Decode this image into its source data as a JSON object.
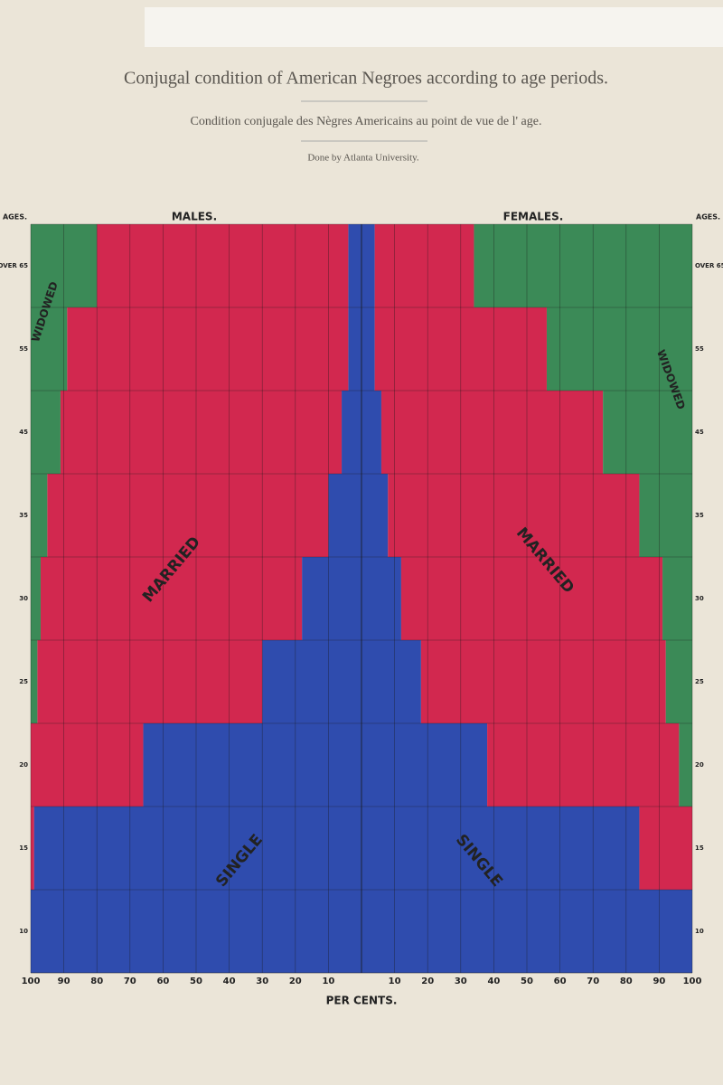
{
  "chart_data": {
    "type": "bar",
    "title": "Conjugal condition of American Negroes according to age periods.",
    "subtitle": "Condition conjugale des Nègres Americains au point de vue de l' age.",
    "note": "Done by Atlanta University.",
    "xlabel": "PER CENTS.",
    "ylabel": "AGES.",
    "categories": [
      "OVER 65",
      "55",
      "45",
      "35",
      "30",
      "25",
      "20",
      "15",
      "10"
    ],
    "xlim": [
      0,
      100
    ],
    "xticks": [
      10,
      20,
      30,
      40,
      50,
      60,
      70,
      80,
      90,
      100
    ],
    "grid": true,
    "panels": [
      {
        "name": "MALES.",
        "side": "left",
        "series": [
          {
            "name": "SINGLE",
            "color": "#2f4cae",
            "values": [
              4,
              4,
              6,
              10,
              18,
              30,
              66,
              99,
              100
            ]
          },
          {
            "name": "MARRIED",
            "color": "#d2284f",
            "values": [
              76,
              85,
              85,
              85,
              79,
              68,
              34,
              1,
              0
            ]
          },
          {
            "name": "WIDOWED",
            "color": "#3b8a57",
            "values": [
              20,
              11,
              9,
              5,
              3,
              2,
              0,
              0,
              0
            ]
          }
        ]
      },
      {
        "name": "FEMALES.",
        "side": "right",
        "series": [
          {
            "name": "SINGLE",
            "color": "#2f4cae",
            "values": [
              4,
              4,
              6,
              8,
              12,
              18,
              38,
              84,
              100
            ]
          },
          {
            "name": "MARRIED",
            "color": "#d2284f",
            "values": [
              30,
              52,
              67,
              76,
              79,
              74,
              58,
              16,
              0
            ]
          },
          {
            "name": "WIDOWED",
            "color": "#3b8a57",
            "values": [
              66,
              44,
              27,
              16,
              9,
              8,
              4,
              0,
              0
            ]
          }
        ]
      }
    ]
  }
}
